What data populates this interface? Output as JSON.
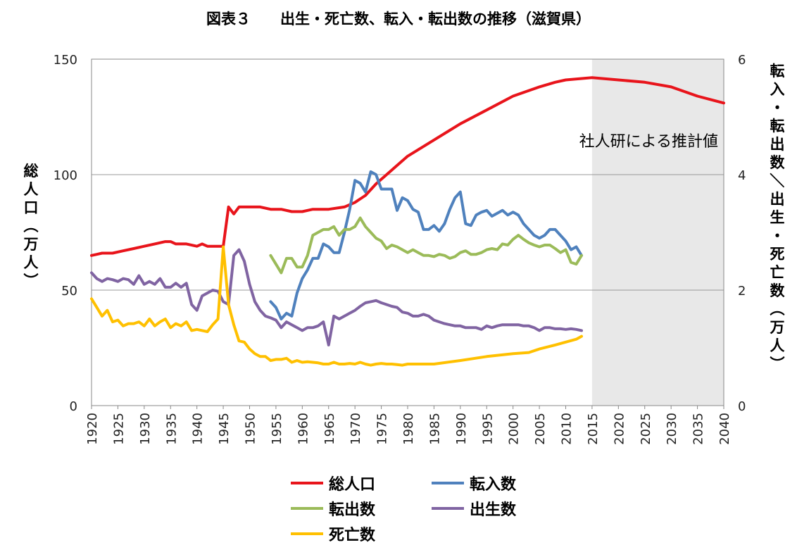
{
  "chart_data": {
    "type": "line",
    "title": "図表３　　出生・死亡数、転入・転出数の推移（滋賀県）",
    "ylabel_left": "総人口（万人）",
    "ylabel_right": "転入・転出数／出生・死亡数（万人）",
    "xlim": [
      1920,
      2040
    ],
    "ylim_left": [
      0,
      150
    ],
    "ylim_right": [
      0,
      6
    ],
    "yticks_left": [
      "0",
      "50",
      "100",
      "150"
    ],
    "yticks_right": [
      "0",
      "2",
      "4",
      "6"
    ],
    "xticks": [
      "1920",
      "1925",
      "1930",
      "1935",
      "1940",
      "1945",
      "1950",
      "1955",
      "1960",
      "1965",
      "1970",
      "1975",
      "1980",
      "1985",
      "1990",
      "1995",
      "2000",
      "2005",
      "2010",
      "2015",
      "2020",
      "2025",
      "2030",
      "2035",
      "2040"
    ],
    "grid": "horizontal",
    "legend_position": "bottom",
    "projection": {
      "from": 2015,
      "to": 2040,
      "label": "社人研による推計値",
      "color": "#e8e8e8"
    },
    "series": [
      {
        "name": "総人口",
        "axis": "left",
        "color": "#e8141b",
        "x": [
          1920,
          1921,
          1922,
          1924,
          1926,
          1928,
          1930,
          1932,
          1934,
          1935,
          1936,
          1938,
          1940,
          1941,
          1942,
          1944,
          1945,
          1946,
          1947,
          1948,
          1950,
          1952,
          1954,
          1956,
          1958,
          1960,
          1962,
          1965,
          1968,
          1970,
          1972,
          1974,
          1976,
          1978,
          1980,
          1985,
          1990,
          1995,
          2000,
          2005,
          2008,
          2010,
          2015,
          2020,
          2025,
          2030,
          2035,
          2040
        ],
        "values": [
          65,
          65.5,
          66,
          66,
          67,
          68,
          69,
          70,
          71,
          71,
          70,
          70,
          69,
          70,
          69,
          69,
          69,
          86,
          83,
          86,
          86,
          86,
          85,
          85,
          84,
          84,
          85,
          85,
          86,
          88,
          91,
          96,
          100,
          104,
          108,
          115,
          122,
          128,
          134,
          138,
          140,
          141,
          142,
          141,
          140,
          138,
          134,
          131
        ]
      },
      {
        "name": "転入数",
        "axis": "right",
        "color": "#4f81bd",
        "x": [
          1954,
          1955,
          1956,
          1957,
          1958,
          1959,
          1960,
          1961,
          1962,
          1963,
          1964,
          1965,
          1966,
          1967,
          1968,
          1969,
          1970,
          1971,
          1972,
          1973,
          1974,
          1975,
          1976,
          1977,
          1978,
          1979,
          1980,
          1981,
          1982,
          1983,
          1984,
          1985,
          1986,
          1987,
          1988,
          1989,
          1990,
          1991,
          1992,
          1993,
          1994,
          1995,
          1996,
          1997,
          1998,
          1999,
          2000,
          2001,
          2002,
          2003,
          2004,
          2005,
          2006,
          2007,
          2008,
          2009,
          2010,
          2011,
          2012,
          2013
        ],
        "values": [
          1.8,
          1.7,
          1.5,
          1.6,
          1.55,
          1.95,
          2.2,
          2.35,
          2.55,
          2.55,
          2.8,
          2.75,
          2.65,
          2.65,
          3.0,
          3.4,
          3.9,
          3.85,
          3.7,
          4.05,
          4.0,
          3.75,
          3.75,
          3.75,
          3.38,
          3.6,
          3.55,
          3.4,
          3.35,
          3.05,
          3.05,
          3.12,
          3.02,
          3.15,
          3.4,
          3.6,
          3.7,
          3.15,
          3.12,
          3.3,
          3.35,
          3.38,
          3.28,
          3.33,
          3.38,
          3.3,
          3.35,
          3.3,
          3.15,
          3.05,
          2.95,
          2.9,
          2.95,
          3.05,
          3.05,
          2.95,
          2.85,
          2.7,
          2.75,
          2.6
        ],
        "label": ""
      },
      {
        "name": "転出数",
        "axis": "right",
        "color": "#9bbb59",
        "x": [
          1954,
          1955,
          1956,
          1957,
          1958,
          1959,
          1960,
          1961,
          1962,
          1963,
          1964,
          1965,
          1966,
          1967,
          1968,
          1969,
          1970,
          1971,
          1972,
          1973,
          1974,
          1975,
          1976,
          1977,
          1978,
          1979,
          1980,
          1981,
          1982,
          1983,
          1984,
          1985,
          1986,
          1987,
          1988,
          1989,
          1990,
          1991,
          1992,
          1993,
          1994,
          1995,
          1996,
          1997,
          1998,
          1999,
          2000,
          2001,
          2002,
          2003,
          2004,
          2005,
          2006,
          2007,
          2008,
          2009,
          2010,
          2011,
          2012,
          2013
        ],
        "values": [
          2.6,
          2.45,
          2.3,
          2.55,
          2.55,
          2.4,
          2.4,
          2.6,
          2.95,
          3.0,
          3.05,
          3.05,
          3.1,
          2.95,
          3.05,
          3.05,
          3.1,
          3.25,
          3.1,
          3.0,
          2.9,
          2.85,
          2.72,
          2.78,
          2.75,
          2.7,
          2.65,
          2.7,
          2.65,
          2.6,
          2.6,
          2.58,
          2.62,
          2.6,
          2.55,
          2.58,
          2.65,
          2.68,
          2.62,
          2.62,
          2.65,
          2.7,
          2.72,
          2.7,
          2.8,
          2.78,
          2.88,
          2.95,
          2.88,
          2.82,
          2.78,
          2.75,
          2.78,
          2.78,
          2.72,
          2.65,
          2.7,
          2.48,
          2.45,
          2.6
        ]
      },
      {
        "name": "出生数",
        "axis": "right",
        "color": "#8064a2",
        "x": [
          1920,
          1921,
          1922,
          1923,
          1924,
          1925,
          1926,
          1927,
          1928,
          1929,
          1930,
          1931,
          1932,
          1933,
          1934,
          1935,
          1936,
          1937,
          1938,
          1939,
          1940,
          1941,
          1942,
          1943,
          1944,
          1945,
          1946,
          1947,
          1948,
          1949,
          1950,
          1951,
          1952,
          1953,
          1954,
          1955,
          1956,
          1957,
          1958,
          1959,
          1960,
          1961,
          1962,
          1963,
          1964,
          1965,
          1966,
          1967,
          1968,
          1969,
          1970,
          1971,
          1972,
          1973,
          1974,
          1975,
          1976,
          1977,
          1978,
          1979,
          1980,
          1981,
          1982,
          1983,
          1984,
          1985,
          1986,
          1987,
          1988,
          1989,
          1990,
          1991,
          1992,
          1993,
          1994,
          1995,
          1996,
          1997,
          1998,
          1999,
          2000,
          2001,
          2002,
          2003,
          2004,
          2005,
          2006,
          2007,
          2008,
          2009,
          2010,
          2011,
          2012,
          2013
        ],
        "values": [
          2.3,
          2.2,
          2.15,
          2.2,
          2.18,
          2.15,
          2.2,
          2.18,
          2.1,
          2.25,
          2.1,
          2.15,
          2.1,
          2.2,
          2.05,
          2.05,
          2.12,
          2.05,
          2.12,
          1.75,
          1.65,
          1.9,
          1.95,
          2.0,
          1.98,
          1.8,
          1.75,
          2.6,
          2.7,
          2.5,
          2.1,
          1.8,
          1.65,
          1.55,
          1.52,
          1.48,
          1.35,
          1.45,
          1.4,
          1.35,
          1.3,
          1.35,
          1.35,
          1.38,
          1.45,
          1.05,
          1.55,
          1.5,
          1.55,
          1.6,
          1.65,
          1.72,
          1.78,
          1.8,
          1.82,
          1.78,
          1.75,
          1.72,
          1.7,
          1.62,
          1.6,
          1.55,
          1.55,
          1.58,
          1.55,
          1.48,
          1.45,
          1.42,
          1.4,
          1.38,
          1.38,
          1.35,
          1.35,
          1.35,
          1.32,
          1.38,
          1.35,
          1.38,
          1.4,
          1.4,
          1.4,
          1.4,
          1.38,
          1.38,
          1.35,
          1.3,
          1.35,
          1.35,
          1.33,
          1.33,
          1.32,
          1.33,
          1.32,
          1.3
        ]
      },
      {
        "name": "死亡数",
        "axis": "right",
        "color": "#ffc000",
        "x": [
          1920,
          1921,
          1922,
          1923,
          1924,
          1925,
          1926,
          1927,
          1928,
          1929,
          1930,
          1931,
          1932,
          1933,
          1934,
          1935,
          1936,
          1937,
          1938,
          1939,
          1940,
          1941,
          1942,
          1943,
          1944,
          1945,
          1946,
          1947,
          1948,
          1949,
          1950,
          1951,
          1952,
          1953,
          1954,
          1955,
          1956,
          1957,
          1958,
          1959,
          1960,
          1961,
          1962,
          1963,
          1964,
          1965,
          1966,
          1967,
          1968,
          1969,
          1970,
          1971,
          1972,
          1973,
          1974,
          1975,
          1976,
          1977,
          1978,
          1979,
          1980,
          1985,
          1990,
          1995,
          2000,
          2003,
          2005,
          2008,
          2010,
          2012,
          2013
        ],
        "values": [
          1.85,
          1.7,
          1.55,
          1.65,
          1.45,
          1.48,
          1.38,
          1.42,
          1.42,
          1.45,
          1.38,
          1.5,
          1.38,
          1.45,
          1.5,
          1.35,
          1.42,
          1.38,
          1.45,
          1.3,
          1.32,
          1.3,
          1.28,
          1.4,
          1.5,
          2.75,
          1.75,
          1.4,
          1.12,
          1.1,
          0.98,
          0.9,
          0.85,
          0.85,
          0.78,
          0.8,
          0.8,
          0.82,
          0.75,
          0.78,
          0.75,
          0.76,
          0.75,
          0.74,
          0.72,
          0.72,
          0.75,
          0.72,
          0.72,
          0.73,
          0.72,
          0.75,
          0.72,
          0.7,
          0.72,
          0.73,
          0.72,
          0.72,
          0.71,
          0.7,
          0.72,
          0.72,
          0.78,
          0.85,
          0.9,
          0.92,
          0.98,
          1.05,
          1.1,
          1.15,
          1.2
        ]
      }
    ]
  }
}
